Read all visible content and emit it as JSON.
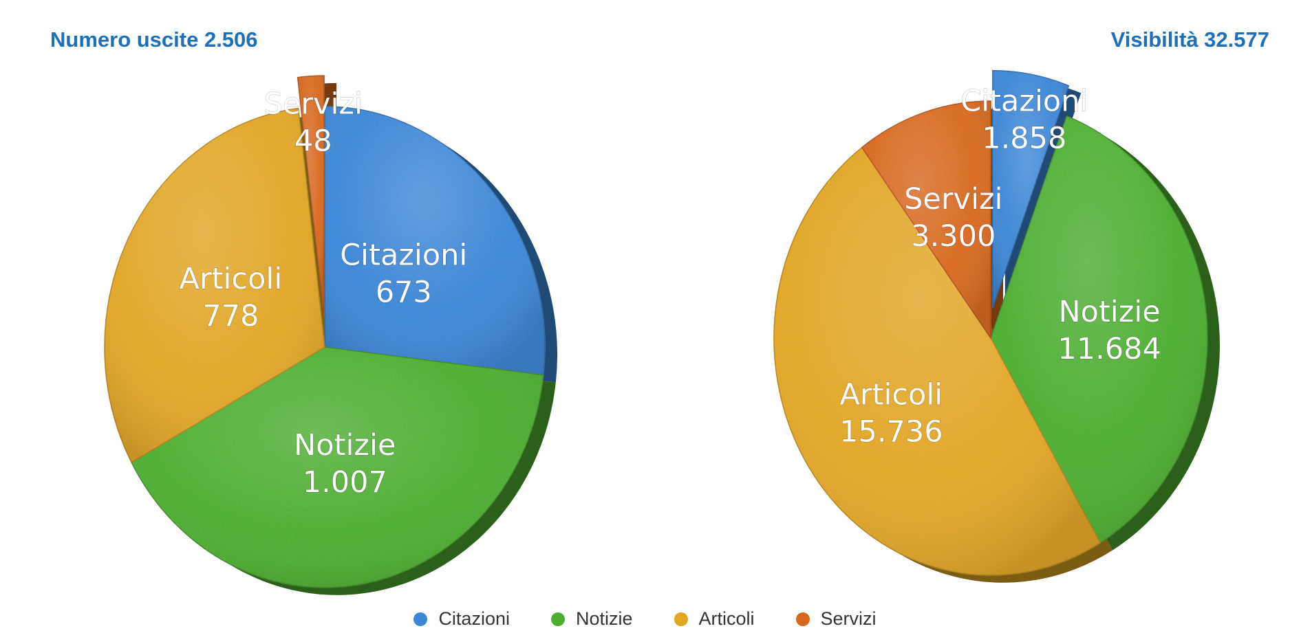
{
  "colors": {
    "title": "#1d6fba",
    "Citazioni": "#3b87d6",
    "Notizie": "#4cae2e",
    "Articoli": "#e2a620",
    "Servizi": "#d8691c"
  },
  "chart_data": [
    {
      "type": "pie",
      "style": "3d-exploded",
      "title": "Numero uscite 2.506",
      "categories": [
        "Citazioni",
        "Notizie",
        "Articoli",
        "Servizi"
      ],
      "values": [
        673,
        1007,
        778,
        48
      ],
      "value_labels": [
        "673",
        "1.007",
        "778",
        "48"
      ],
      "exploded": [
        "Servizi"
      ]
    },
    {
      "type": "pie",
      "style": "3d-exploded",
      "title": "Visibilità 32.577",
      "categories": [
        "Citazioni",
        "Notizie",
        "Articoli",
        "Servizi"
      ],
      "values": [
        1858,
        11684,
        15736,
        3300
      ],
      "value_labels": [
        "1.858",
        "11.684",
        "15.736",
        "3.300"
      ],
      "exploded": [
        "Citazioni"
      ]
    }
  ],
  "legend": [
    {
      "label": "Citazioni"
    },
    {
      "label": "Notizie"
    },
    {
      "label": "Articoli"
    },
    {
      "label": "Servizi"
    }
  ]
}
